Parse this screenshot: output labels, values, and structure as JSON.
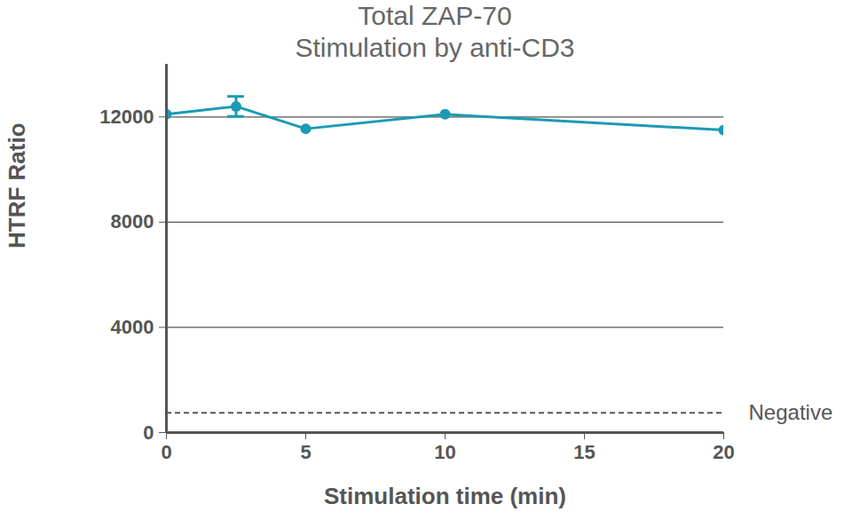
{
  "chart_data": {
    "type": "line",
    "title": "Total ZAP-70",
    "subtitle": "Stimulation by anti-CD3",
    "x_label": "Stimulation time (min)",
    "y_label": "HTRF Ratio",
    "series": [
      {
        "name": "Total ZAP-70",
        "color": "#1b9ab5",
        "marker": "circle",
        "x": [
          0,
          2.5,
          5,
          10,
          20
        ],
        "values": [
          12100,
          12400,
          11550,
          12100,
          11500
        ],
        "errors": [
          null,
          380,
          null,
          null,
          null
        ]
      }
    ],
    "reference_lines": [
      {
        "label": "Negative",
        "value": 750,
        "line_style": "dashed"
      }
    ],
    "xlim": [
      0,
      20
    ],
    "xticks": [
      0,
      5,
      10,
      15,
      20
    ],
    "ylim": [
      0,
      14000
    ],
    "yticks": [
      0,
      4000,
      8000,
      12000
    ],
    "grid": true
  }
}
